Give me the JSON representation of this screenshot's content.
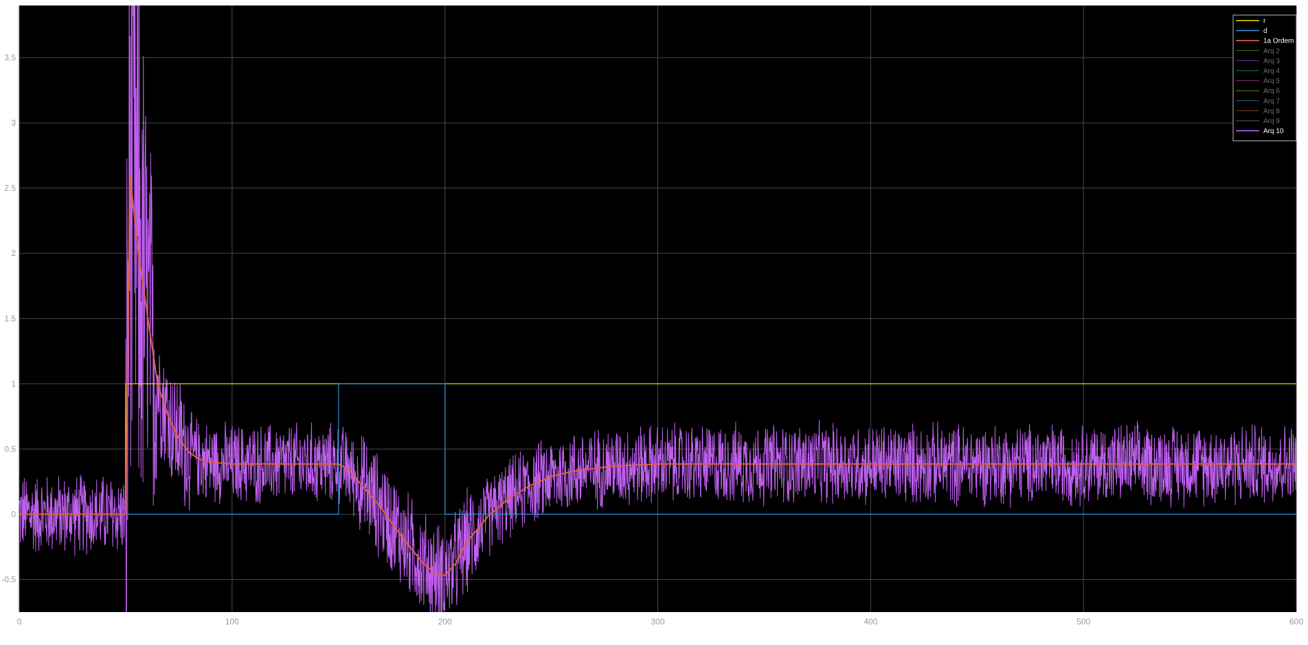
{
  "chart_data": {
    "type": "line",
    "title": "",
    "xlabel": "",
    "ylabel": "",
    "xlim": [
      0,
      600
    ],
    "ylim": [
      -0.75,
      3.9
    ],
    "grid": true,
    "legend_position": "top-right",
    "background": "#000000",
    "x_ticks": [
      "0",
      "100",
      "200",
      "300",
      "400",
      "500",
      "600"
    ],
    "y_ticks": [
      "-0.5",
      "0",
      "0.5",
      "1",
      "1.5",
      "2",
      "2.5",
      "3",
      "3.5"
    ],
    "series": [
      {
        "name": "r",
        "color": "#e8e800",
        "kind": "reference",
        "points": [
          [
            0,
            0
          ],
          [
            50,
            0
          ],
          [
            50,
            1
          ],
          [
            600,
            1
          ]
        ]
      },
      {
        "name": "d",
        "color": "#2b8fd6",
        "kind": "disturbance",
        "points": [
          [
            0,
            0
          ],
          [
            150,
            0
          ],
          [
            150,
            1
          ],
          [
            200,
            1
          ],
          [
            200,
            0
          ],
          [
            600,
            0
          ]
        ]
      },
      {
        "name": "1a Ordem",
        "color": "#e0623a",
        "kind": "response",
        "points": [
          [
            0,
            0
          ],
          [
            50,
            0
          ],
          [
            52,
            2.6
          ],
          [
            56,
            2.0
          ],
          [
            60,
            1.55
          ],
          [
            65,
            1.0
          ],
          [
            70,
            0.75
          ],
          [
            75,
            0.58
          ],
          [
            80,
            0.47
          ],
          [
            85,
            0.42
          ],
          [
            90,
            0.4
          ],
          [
            100,
            0.385
          ],
          [
            150,
            0.385
          ],
          [
            155,
            0.34
          ],
          [
            160,
            0.24
          ],
          [
            170,
            0.05
          ],
          [
            180,
            -0.18
          ],
          [
            190,
            -0.38
          ],
          [
            195,
            -0.45
          ],
          [
            200,
            -0.47
          ],
          [
            205,
            -0.38
          ],
          [
            210,
            -0.22
          ],
          [
            220,
            -0.02
          ],
          [
            230,
            0.12
          ],
          [
            240,
            0.22
          ],
          [
            250,
            0.29
          ],
          [
            260,
            0.33
          ],
          [
            280,
            0.37
          ],
          [
            300,
            0.385
          ],
          [
            600,
            0.385
          ]
        ]
      },
      {
        "name": "Arq 2",
        "color": "#2e7d2e",
        "kind": "hidden"
      },
      {
        "name": "Arq 3",
        "color": "#6a3fa0",
        "kind": "hidden"
      },
      {
        "name": "Arq 4",
        "color": "#1f7a7a",
        "kind": "hidden"
      },
      {
        "name": "Arq 5",
        "color": "#8a2f6a",
        "kind": "hidden"
      },
      {
        "name": "Arq 6",
        "color": "#7a7a1f",
        "kind": "hidden"
      },
      {
        "name": "Arq 7",
        "color": "#2f5f9a",
        "kind": "hidden"
      },
      {
        "name": "Arq 8",
        "color": "#8a3a2f",
        "kind": "hidden"
      },
      {
        "name": "Arq 9",
        "color": "#3f6f3f",
        "kind": "hidden"
      },
      {
        "name": "Arq 10",
        "color": "#c060f0",
        "kind": "noisy",
        "noise_amplitude": 0.35
      }
    ]
  },
  "legend": {
    "active_color": "#ffffff",
    "inactive_color": "#707070",
    "active_series": [
      "r",
      "d",
      "1a Ordem",
      "Arq 10"
    ]
  }
}
